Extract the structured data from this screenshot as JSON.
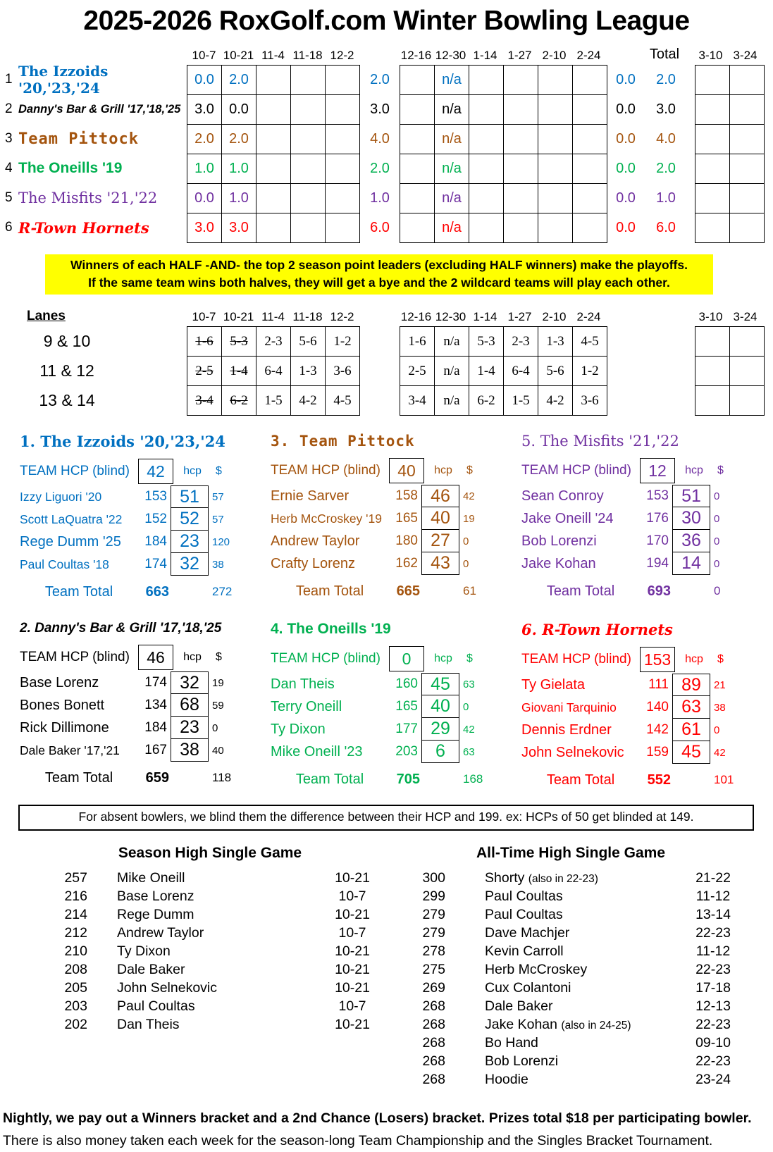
{
  "title": "2025-2026 RoxGolf.com Winter Bowling League",
  "standings": {
    "dates_first": [
      "10-7",
      "10-21",
      "11-4",
      "11-18",
      "12-2"
    ],
    "dates_second": [
      "12-16",
      "12-30",
      "1-14",
      "1-27",
      "2-10",
      "2-24"
    ],
    "total_label": "Total",
    "dates_late": [
      "3-10",
      "3-24"
    ],
    "rows": [
      {
        "rank": "1",
        "team": "The Izzoids '20,'23,'24",
        "style_key": "izzoids",
        "color": "#0070C0",
        "weeks_first": [
          "0.0",
          "2.0",
          "",
          "",
          ""
        ],
        "first_half_total": "2.0",
        "weeks_second": [
          "",
          "n/a",
          "",
          "",
          "",
          ""
        ],
        "second_half_total": "0.0",
        "season_total": "2.0",
        "late_weeks": [
          "",
          ""
        ]
      },
      {
        "rank": "2",
        "team": "Danny's Bar & Grill '17,'18,'25",
        "style_key": "dannys",
        "color": "#000000",
        "weeks_first": [
          "3.0",
          "0.0",
          "",
          "",
          ""
        ],
        "first_half_total": "3.0",
        "weeks_second": [
          "",
          "n/a",
          "",
          "",
          "",
          ""
        ],
        "second_half_total": "0.0",
        "season_total": "3.0",
        "late_weeks": [
          "",
          ""
        ]
      },
      {
        "rank": "3",
        "team": "Team Pittock",
        "style_key": "pittock",
        "color": "#A4540E",
        "weeks_first": [
          "2.0",
          "2.0",
          "",
          "",
          ""
        ],
        "first_half_total": "4.0",
        "weeks_second": [
          "",
          "n/a",
          "",
          "",
          "",
          ""
        ],
        "second_half_total": "0.0",
        "season_total": "4.0",
        "late_weeks": [
          "",
          ""
        ]
      },
      {
        "rank": "4",
        "team": "The Oneills '19",
        "style_key": "oneills",
        "color": "#00B050",
        "weeks_first": [
          "1.0",
          "1.0",
          "",
          "",
          ""
        ],
        "first_half_total": "2.0",
        "weeks_second": [
          "",
          "n/a",
          "",
          "",
          "",
          ""
        ],
        "second_half_total": "0.0",
        "season_total": "2.0",
        "late_weeks": [
          "",
          ""
        ]
      },
      {
        "rank": "5",
        "team": "The Misfits '21,'22",
        "style_key": "misfits",
        "color": "#7030A0",
        "weeks_first": [
          "0.0",
          "1.0",
          "",
          "",
          ""
        ],
        "first_half_total": "1.0",
        "weeks_second": [
          "",
          "n/a",
          "",
          "",
          "",
          ""
        ],
        "second_half_total": "0.0",
        "season_total": "1.0",
        "late_weeks": [
          "",
          ""
        ]
      },
      {
        "rank": "6",
        "team": "R-Town Hornets",
        "style_key": "hornets",
        "color": "#FF0000",
        "weeks_first": [
          "3.0",
          "3.0",
          "",
          "",
          ""
        ],
        "first_half_total": "6.0",
        "weeks_second": [
          "",
          "n/a",
          "",
          "",
          "",
          ""
        ],
        "second_half_total": "0.0",
        "season_total": "6.0",
        "late_weeks": [
          "",
          ""
        ]
      }
    ]
  },
  "banner": {
    "line1": "Winners of each HALF  -AND-  the top 2 season point leaders (excluding HALF winners) make the playoffs.",
    "line2": "If the same team wins both halves, they will get a bye and the 2 wildcard teams will play each other.",
    "background": "#FFFF00"
  },
  "lanes": {
    "label": "Lanes",
    "rows": [
      {
        "label": "9 & 10",
        "first": [
          {
            "t": "1-6",
            "struck": true
          },
          {
            "t": "5-3",
            "struck": true
          },
          {
            "t": "2-3"
          },
          {
            "t": "5-6"
          },
          {
            "t": "1-2"
          }
        ],
        "second": [
          "1-6",
          "n/a",
          "5-3",
          "2-3",
          "1-3",
          "4-5"
        ],
        "late": [
          "",
          ""
        ]
      },
      {
        "label": "11 & 12",
        "first": [
          {
            "t": "2-5",
            "struck": true
          },
          {
            "t": "1-4",
            "struck": true
          },
          {
            "t": "6-4"
          },
          {
            "t": "1-3"
          },
          {
            "t": "3-6"
          }
        ],
        "second": [
          "2-5",
          "n/a",
          "1-4",
          "6-4",
          "5-6",
          "1-2"
        ],
        "late": [
          "",
          ""
        ]
      },
      {
        "label": "13 & 14",
        "first": [
          {
            "t": "3-4",
            "struck": true
          },
          {
            "t": "6-2",
            "struck": true
          },
          {
            "t": "1-5"
          },
          {
            "t": "4-2"
          },
          {
            "t": "4-5"
          }
        ],
        "second": [
          "3-4",
          "n/a",
          "6-2",
          "1-5",
          "4-2",
          "3-6"
        ],
        "late": [
          "",
          ""
        ]
      }
    ]
  },
  "rosters": {
    "team_hcp_label": "TEAM HCP (blind)",
    "hcp_header": "hcp",
    "money_header": "$",
    "team_total_label": "Team Total",
    "panels": [
      {
        "title": "1. The Izzoids '20,'23,'24",
        "style_key": "izzoids",
        "color": "#0070C0",
        "team_hcp": "42",
        "players": [
          {
            "name": "Izzy Liguori '20",
            "avg": "153",
            "hcp": "51",
            "money": "57"
          },
          {
            "name": "Scott LaQuatra '22",
            "avg": "152",
            "hcp": "52",
            "money": "57"
          },
          {
            "name": "Rege Dumm '25",
            "avg": "184",
            "hcp": "23",
            "money": "120"
          },
          {
            "name": "Paul Coultas '18",
            "avg": "174",
            "hcp": "32",
            "money": "38"
          }
        ],
        "team_total": "663",
        "money_total": "272"
      },
      {
        "title": "3. Team Pittock",
        "style_key": "pittock",
        "color": "#A4540E",
        "team_hcp": "40",
        "players": [
          {
            "name": "Ernie Sarver",
            "avg": "158",
            "hcp": "46",
            "money": "42"
          },
          {
            "name": "Herb McCroskey '19",
            "avg": "165",
            "hcp": "40",
            "money": "19"
          },
          {
            "name": "Andrew Taylor",
            "avg": "180",
            "hcp": "27",
            "money": "0"
          },
          {
            "name": "Crafty Lorenz",
            "avg": "162",
            "hcp": "43",
            "money": "0"
          }
        ],
        "team_total": "665",
        "money_total": "61"
      },
      {
        "title": "5. The Misfits '21,'22",
        "style_key": "misfits",
        "color": "#7030A0",
        "team_hcp": "12",
        "players": [
          {
            "name": "Sean Conroy",
            "avg": "153",
            "hcp": "51",
            "money": "0"
          },
          {
            "name": "Jake Oneill '24",
            "avg": "176",
            "hcp": "30",
            "money": "0"
          },
          {
            "name": "Bob Lorenzi",
            "avg": "170",
            "hcp": "36",
            "money": "0"
          },
          {
            "name": "Jake Kohan",
            "avg": "194",
            "hcp": "14",
            "money": "0"
          }
        ],
        "team_total": "693",
        "money_total": "0"
      },
      {
        "title": "2. Danny's Bar & Grill '17,'18,'25",
        "style_key": "dannys",
        "color": "#000000",
        "team_hcp": "46",
        "players": [
          {
            "name": "Base Lorenz",
            "avg": "174",
            "hcp": "32",
            "money": "19"
          },
          {
            "name": "Bones Bonett",
            "avg": "134",
            "hcp": "68",
            "money": "59"
          },
          {
            "name": "Rick Dillimone",
            "avg": "184",
            "hcp": "23",
            "money": "0"
          },
          {
            "name": "Dale Baker '17,'21",
            "avg": "167",
            "hcp": "38",
            "money": "40"
          }
        ],
        "team_total": "659",
        "money_total": "118"
      },
      {
        "title": "4. The Oneills '19",
        "style_key": "oneills",
        "color": "#00B050",
        "team_hcp": "0",
        "players": [
          {
            "name": "Dan Theis",
            "avg": "160",
            "hcp": "45",
            "money": "63"
          },
          {
            "name": "Terry Oneill",
            "avg": "165",
            "hcp": "40",
            "money": "0"
          },
          {
            "name": "Ty Dixon",
            "avg": "177",
            "hcp": "29",
            "money": "42"
          },
          {
            "name": "Mike Oneill '23",
            "avg": "203",
            "hcp": "6",
            "money": "63"
          }
        ],
        "team_total": "705",
        "money_total": "168"
      },
      {
        "title": "6. R-Town Hornets",
        "style_key": "hornets",
        "color": "#FF0000",
        "team_hcp": "153",
        "players": [
          {
            "name": "Ty Gielata",
            "avg": "111",
            "hcp": "89",
            "money": "21"
          },
          {
            "name": "Giovani Tarquinio",
            "avg": "140",
            "hcp": "63",
            "money": "38"
          },
          {
            "name": "Dennis Erdner",
            "avg": "142",
            "hcp": "61",
            "money": "0"
          },
          {
            "name": "John Selnekovic",
            "avg": "159",
            "hcp": "45",
            "money": "42"
          }
        ],
        "team_total": "552",
        "money_total": "101"
      }
    ]
  },
  "blind_note": "For absent bowlers, we blind them the difference between their HCP and 199.  ex:  HCPs of 50 get blinded at 149.",
  "season_high": {
    "title": "Season High Single Game",
    "entries": [
      {
        "score": "257",
        "name": "Mike Oneill",
        "note": "",
        "date": "10-21"
      },
      {
        "score": "216",
        "name": "Base Lorenz",
        "note": "",
        "date": "10-7"
      },
      {
        "score": "214",
        "name": "Rege Dumm",
        "note": "",
        "date": "10-21"
      },
      {
        "score": "212",
        "name": "Andrew Taylor",
        "note": "",
        "date": "10-7"
      },
      {
        "score": "210",
        "name": "Ty Dixon",
        "note": "",
        "date": "10-21"
      },
      {
        "score": "208",
        "name": "Dale Baker",
        "note": "",
        "date": "10-21"
      },
      {
        "score": "205",
        "name": "John Selnekovic",
        "note": "",
        "date": "10-21"
      },
      {
        "score": "203",
        "name": "Paul Coultas",
        "note": "",
        "date": "10-7"
      },
      {
        "score": "202",
        "name": "Dan Theis",
        "note": "",
        "date": "10-21"
      }
    ]
  },
  "alltime_high": {
    "title": "All-Time High Single Game",
    "entries": [
      {
        "score": "300",
        "name": "Shorty",
        "note": "(also in 22-23)",
        "date": "21-22"
      },
      {
        "score": "299",
        "name": "Paul Coultas",
        "note": "",
        "date": "11-12"
      },
      {
        "score": "279",
        "name": "Paul Coultas",
        "note": "",
        "date": "13-14"
      },
      {
        "score": "279",
        "name": "Dave Machjer",
        "note": "",
        "date": "22-23"
      },
      {
        "score": "278",
        "name": "Kevin Carroll",
        "note": "",
        "date": "11-12"
      },
      {
        "score": "275",
        "name": "Herb McCroskey",
        "note": "",
        "date": "22-23"
      },
      {
        "score": "269",
        "name": "Cux Colantoni",
        "note": "",
        "date": "17-18"
      },
      {
        "score": "268",
        "name": "Dale Baker",
        "note": "",
        "date": "12-13"
      },
      {
        "score": "268",
        "name": "Jake Kohan",
        "note": "(also in 24-25)",
        "date": "22-23"
      },
      {
        "score": "268",
        "name": "Bo Hand",
        "note": "",
        "date": "09-10"
      },
      {
        "score": "268",
        "name": "Bob Lorenzi",
        "note": "",
        "date": "22-23"
      },
      {
        "score": "268",
        "name": "Hoodie",
        "note": "",
        "date": "23-24"
      }
    ]
  },
  "footer": {
    "line1": "Nightly, we pay out a Winners bracket and a 2nd Chance (Losers) bracket.  Prizes total $18 per participating bowler.",
    "line2": "There is also money taken each week for the season-long Team Championship and the Singles Bracket Tournament."
  }
}
